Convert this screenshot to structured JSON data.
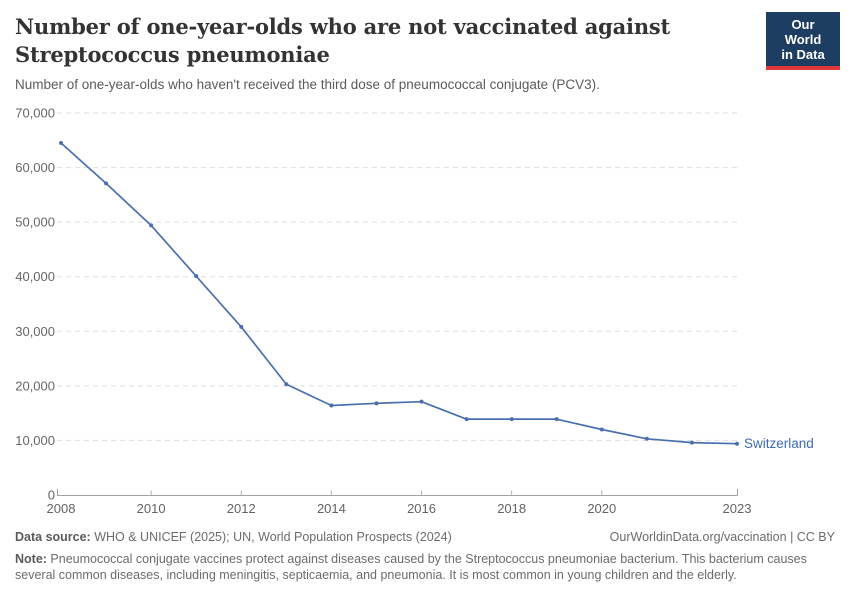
{
  "header": {
    "title_lines": [
      "Number of one-year-olds who are not vaccinated against",
      "Streptococcus pneumoniae"
    ],
    "logo": {
      "line1": "Our World",
      "line2": "in Data",
      "bg_color": "#1d3d63",
      "accent_color": "#e0373b"
    }
  },
  "chart_data": {
    "type": "line",
    "title": "Number of one-year-olds who are not vaccinated against Streptococcus pneumoniae",
    "subtitle": "Number of one-year-olds who haven't received the third dose of pneumococcal conjugate (PCV3).",
    "x": [
      2008,
      2009,
      2010,
      2011,
      2012,
      2013,
      2014,
      2015,
      2016,
      2017,
      2018,
      2019,
      2020,
      2021,
      2022,
      2023
    ],
    "series": [
      {
        "name": "Switzerland",
        "color": "#4b6fae",
        "label_color": "#3d6cb4",
        "values": [
          64500,
          57100,
          49400,
          40100,
          30800,
          20300,
          16400,
          16800,
          17100,
          13900,
          13900,
          13900,
          12000,
          10300,
          9600,
          9400
        ]
      }
    ],
    "xlim": [
      2008,
      2023
    ],
    "ylim": [
      0,
      70000
    ],
    "x_ticks": [
      2008,
      2010,
      2012,
      2014,
      2016,
      2018,
      2020,
      2023
    ],
    "y_ticks": [
      0,
      10000,
      20000,
      30000,
      40000,
      50000,
      60000,
      70000
    ],
    "grid": "horizontal-dashed",
    "legend": "line-end-label"
  },
  "footer": {
    "datasource_label": "Data source:",
    "datasource_text": " WHO & UNICEF (2025); UN, World Population Prospects (2024)",
    "link": "OurWorldinData.org/vaccination | CC BY",
    "note_label": "Note:",
    "note_text": " Pneumococcal conjugate vaccines protect against diseases caused by the Streptococcus pneumoniae bacterium. This bacterium causes several common diseases, including meningitis, septicaemia, and pneumonia. It is most common in young children and the elderly."
  }
}
